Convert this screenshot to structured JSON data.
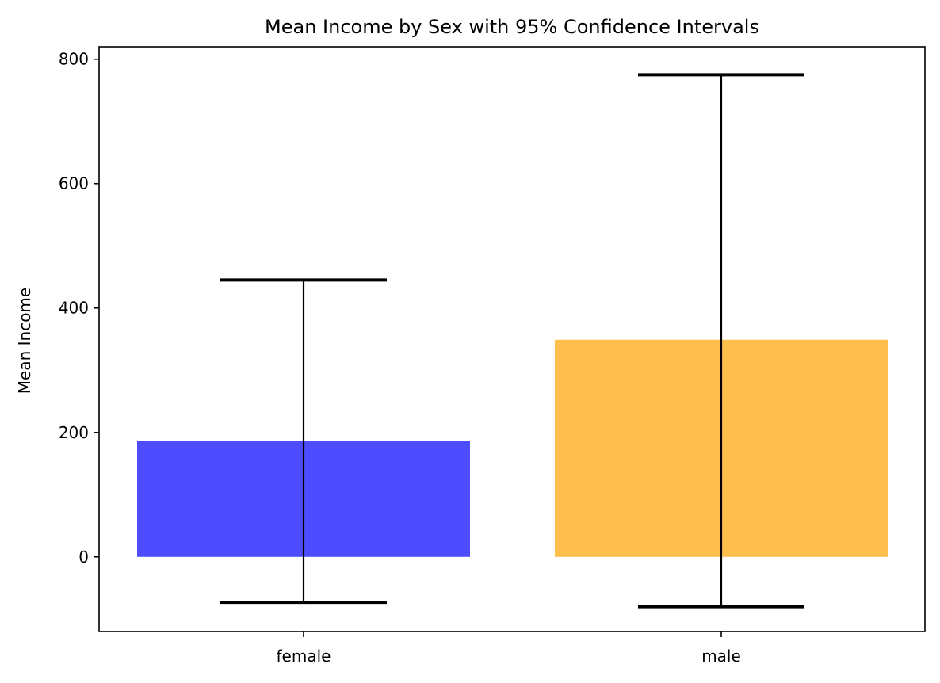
{
  "chart_data": {
    "type": "bar",
    "title": "Mean Income by Sex with 95% Confidence Intervals",
    "xlabel": "",
    "ylabel": "Mean Income",
    "categories": [
      "female",
      "male"
    ],
    "values": [
      186,
      349
    ],
    "error_bars": [
      {
        "lower": -73,
        "upper": 445
      },
      {
        "lower": -80,
        "upper": 775
      }
    ],
    "colors": [
      "#4d4dff",
      "#ffbf4d"
    ],
    "ylim": [
      -120,
      820
    ],
    "yticks": [
      0,
      200,
      400,
      600,
      800
    ],
    "grid": false
  }
}
